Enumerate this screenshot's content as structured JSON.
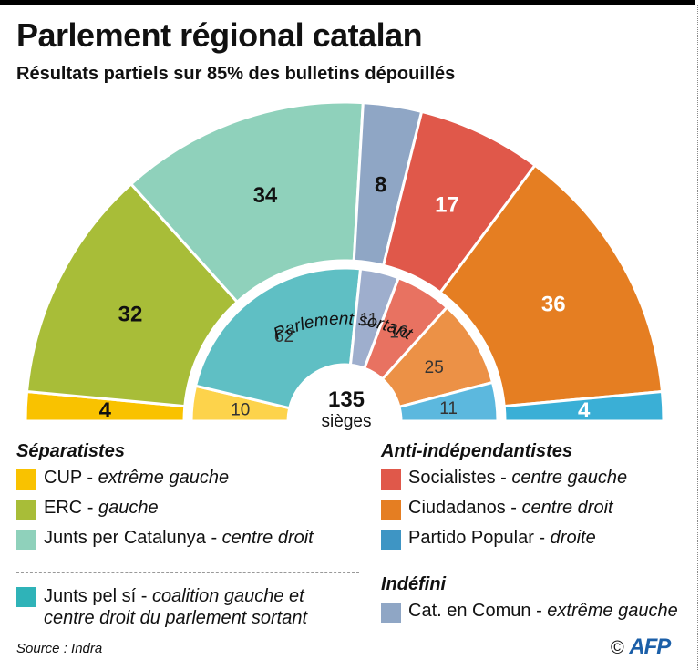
{
  "header": {
    "title": "Parlement régional catalan",
    "subtitle": "Résultats partiels sur 85% des bulletins dépouillés"
  },
  "chart_data": {
    "type": "pie",
    "subtype": "hemicycle",
    "title": "Parlement régional catalan",
    "subtitle": "Résultats partiels sur 85% des bulletins dépouillés",
    "total_seats": 135,
    "center_label": {
      "value": "135",
      "unit": "sièges"
    },
    "inner_ring_label": "Parlement sortant",
    "series": [
      {
        "name": "Résultats partiels",
        "ring": "outer",
        "categories": [
          "CUP",
          "ERC",
          "Junts per Catalunya",
          "Cat. en Comun",
          "Socialistes",
          "Ciudadanos",
          "Partido Popular"
        ],
        "values": [
          4,
          32,
          34,
          8,
          17,
          36,
          4
        ],
        "colors": [
          "#f9c200",
          "#a8bd38",
          "#8fd1bb",
          "#8fa6c5",
          "#e0584a",
          "#e57e22",
          "#3aafd6"
        ],
        "label_colors": [
          "#111",
          "#111",
          "#111",
          "#111",
          "#fff",
          "#fff",
          "#fff"
        ]
      },
      {
        "name": "Parlement sortant",
        "ring": "inner",
        "categories": [
          "CUP",
          "Junts pel sí",
          "Cat. en Comun",
          "Socialistes",
          "Ciudadanos",
          "Partido Popular"
        ],
        "values": [
          10,
          62,
          11,
          16,
          25,
          11
        ],
        "colors": [
          "#fdd34b",
          "#5fbfc4",
          "#9eaecd",
          "#e87261",
          "#ec9146",
          "#5cb8de"
        ],
        "label_colors": [
          "#333",
          "#333",
          "#333",
          "#333",
          "#333",
          "#333"
        ]
      }
    ]
  },
  "legend": {
    "groups": [
      {
        "heading": "Séparatistes",
        "items": [
          {
            "name": "CUP",
            "desc": "extrême gauche",
            "color": "#f9c200"
          },
          {
            "name": "ERC",
            "desc": "gauche",
            "color": "#a8bd38"
          },
          {
            "name": "Junts per Catalunya",
            "desc": "centre droit",
            "color": "#8fd1bb"
          }
        ]
      },
      {
        "heading": "Anti-indépendantistes",
        "items": [
          {
            "name": "Socialistes",
            "desc": "centre gauche",
            "color": "#e0584a"
          },
          {
            "name": "Ciudadanos",
            "desc": "centre droit",
            "color": "#e57e22"
          },
          {
            "name": "Partido Popular",
            "desc": "droite",
            "color": "#3e95c4"
          }
        ]
      },
      {
        "heading": "Indéfini",
        "items": [
          {
            "name": "Cat. en Comun",
            "desc": "extrême gauche",
            "color": "#8fa6c5"
          }
        ]
      }
    ],
    "coalition": {
      "name": "Junts pel sí",
      "desc_line1": "coalition gauche et",
      "desc_line2": "centre droit du parlement sortant",
      "color": "#2fb3b8"
    }
  },
  "footer": {
    "source": "Source : Indra",
    "copyright": "©",
    "agency": "AFP"
  }
}
